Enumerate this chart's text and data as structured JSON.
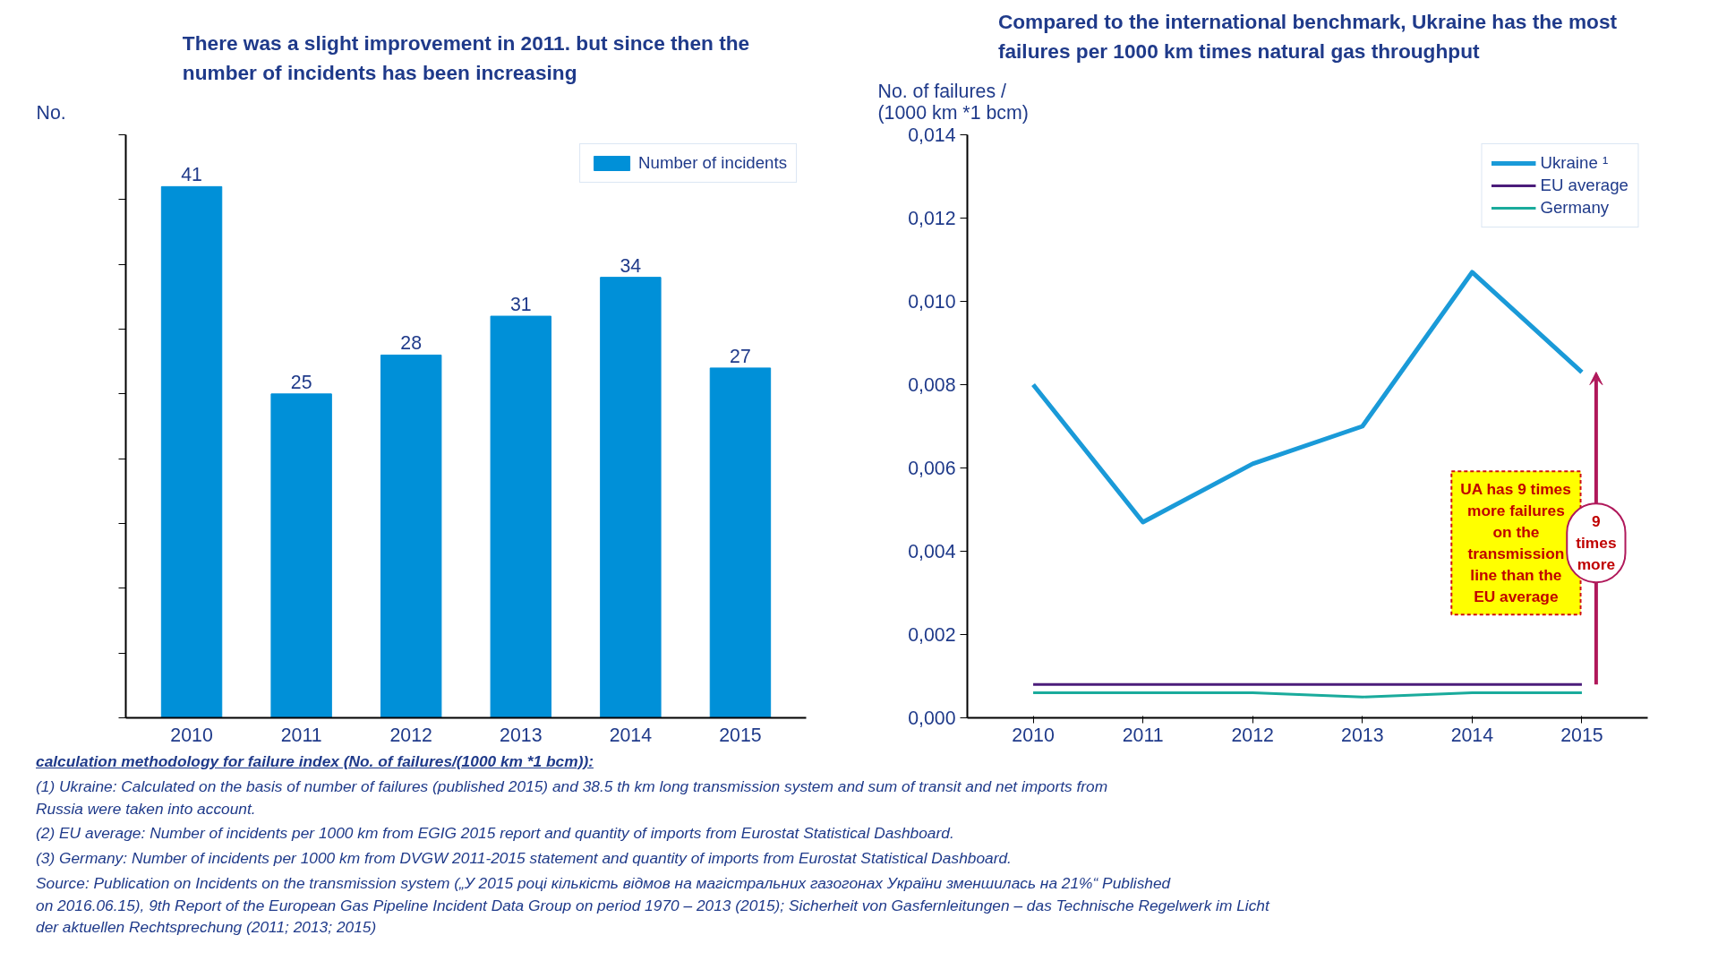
{
  "chart_data": [
    {
      "type": "bar",
      "title": "There was a slight improvement in 2011. but since then the\nnumber of incidents has been increasing",
      "ylabel": "No.",
      "categories": [
        "2010",
        "2011",
        "2012",
        "2013",
        "2014",
        "2015"
      ],
      "series": [
        {
          "name": "Number of incidents",
          "color": "#0090d8",
          "values": [
            41,
            25,
            28,
            31,
            34,
            27
          ]
        }
      ],
      "data_labels": true,
      "ylim": [
        0,
        45
      ],
      "yticks": [
        {
          "value": 0,
          "label": null
        },
        {
          "value": 5,
          "label": null
        },
        {
          "value": 10,
          "label": null
        },
        {
          "value": 15,
          "label": null
        },
        {
          "value": 20,
          "label": null
        },
        {
          "value": 25,
          "label": null
        },
        {
          "value": 30,
          "label": null
        },
        {
          "value": 35,
          "label": null
        },
        {
          "value": 40,
          "label": null
        },
        {
          "value": 45,
          "label": null
        }
      ],
      "tick_labels": "x",
      "legend": "top right",
      "grid": false,
      "annotations": [
        "calculation methodology for failure index (No. of failures/(1000 km *1 bcm)):"
      ]
    },
    {
      "type": "line",
      "title": "Compared to the international benchmark, Ukraine has the most\nfailures per 1000 km times natural gas throughput",
      "ylabel": "No. of failures /\n(1000 km *1 bcm)",
      "categories": [
        "2010",
        "2011",
        "2012",
        "2013",
        "2014",
        "2015"
      ],
      "series": [
        {
          "name": "Ukraine ¹",
          "color": "#1a9ad8",
          "values": [
            0.008,
            0.0047,
            0.0061,
            0.007,
            0.0107,
            0.0083
          ]
        },
        {
          "name": "EU average",
          "color": "#4b1c7a",
          "values": [
            0.0008,
            0.0008,
            0.0008,
            0.0008,
            0.0008,
            0.0008
          ]
        },
        {
          "name": "Germany",
          "color": "#1aab9c",
          "values": [
            0.0006,
            0.0006,
            0.0006,
            0.0005,
            0.0006,
            0.0006
          ]
        }
      ],
      "ylim": [
        0,
        0.014
      ],
      "yticks": [
        {
          "value": 0,
          "label": "0,000"
        },
        {
          "value": 0.002,
          "label": "0,002"
        },
        {
          "value": 0.004,
          "label": "0,004"
        },
        {
          "value": 0.006,
          "label": "0,006"
        },
        {
          "value": 0.008,
          "label": "0,008"
        },
        {
          "value": 0.01,
          "label": "0,010"
        },
        {
          "value": 0.012,
          "label": "0,012"
        },
        {
          "value": 0.014,
          "label": "0,014"
        }
      ],
      "legend": "top right",
      "grid": false,
      "annotations": [
        "UA has 9 times\nmore failures\non the\ntransmission\nline than the\nEU average",
        "9\ntimes\nmore",
        "(1)   Ukraine: Calculated on the basis of number of failures (published 2015) and 38.5 th km long transmission system and sum of transit and net imports from\n        Russia were taken into account.",
        "(2)   EU average: Number of incidents per 1000 km from EGIG 2015 report and quantity of imports from Eurostat Statistical Dashboard.",
        "(3)   Germany: Number of incidents per 1000 km  from DVGW  2011-2015 statement and quantity of imports from Eurostat Statistical Dashboard.",
        "Source: Publication on Incidents on the transmission system („У 2015 році кількість відмов на магістральних газогонах України зменшилась на 21%“ Published\non 2016.06.15), 9th Report of the European Gas Pipeline Incident Data Group on period 1970 – 2013 (2015); Sicherheit von Gasfernleitungen – das Technische Regelwerk im Licht\nder aktuellen Rechtsprechung (2011; 2013; 2015)"
      ]
    }
  ]
}
